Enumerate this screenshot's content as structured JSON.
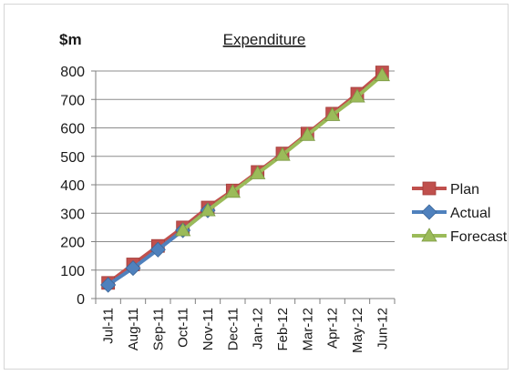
{
  "chart_data": {
    "type": "line",
    "title": "Expenditure",
    "ylabel": "$m",
    "xlabel": "",
    "ylim": [
      0,
      800
    ],
    "yticks": [
      0,
      100,
      200,
      300,
      400,
      500,
      600,
      700,
      800
    ],
    "grid": true,
    "legend_position": "right",
    "categories": [
      "Jul-11",
      "Aug-11",
      "Sep-11",
      "Oct-11",
      "Nov-11",
      "Dec-11",
      "Jan-12",
      "Feb-12",
      "Mar-12",
      "Apr-12",
      "May-12",
      "Jun-12"
    ],
    "series": [
      {
        "name": "Plan",
        "color": "#c0504d",
        "marker": "square",
        "values": [
          55,
          120,
          185,
          250,
          320,
          380,
          445,
          510,
          580,
          650,
          720,
          795
        ]
      },
      {
        "name": "Actual",
        "color": "#4f81bd",
        "marker": "diamond",
        "values": [
          48,
          107,
          172,
          240,
          310,
          null,
          null,
          null,
          null,
          null,
          null,
          null
        ]
      },
      {
        "name": "Forecast",
        "color": "#9bbb59",
        "marker": "triangle",
        "values": [
          null,
          null,
          null,
          240,
          310,
          375,
          440,
          505,
          575,
          645,
          710,
          785
        ]
      }
    ]
  }
}
